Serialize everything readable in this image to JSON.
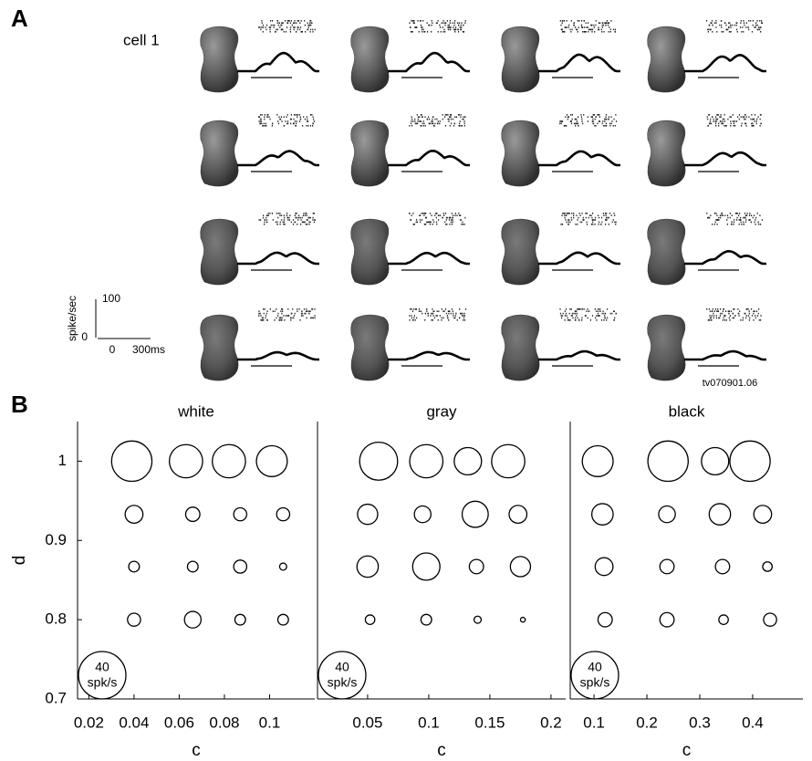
{
  "panel_a": {
    "label": "A",
    "cell_label": "cell 1",
    "scale_bar": {
      "ylabel": "spike/sec",
      "yticks": [
        0,
        100
      ],
      "xticks": [
        0,
        {
          "value": 300,
          "label": "300ms"
        }
      ]
    },
    "stimulus_id": "tv070901.06"
  },
  "panel_b_label": "B",
  "chart_data": [
    {
      "type": "bubble",
      "title": "white",
      "xlabel": "c",
      "ylabel": "d",
      "xlim": [
        0.015,
        0.12
      ],
      "xticks": [
        0.02,
        0.04,
        0.06,
        0.08,
        0.1
      ],
      "ylim": [
        0.7,
        1.05
      ],
      "yticks": [
        0.7,
        0.8,
        0.9,
        1
      ],
      "size_legend": {
        "value": 40,
        "unit": "spk/s"
      },
      "series": [
        {
          "color": "#000000",
          "x": [
            0.039,
            0.063,
            0.082,
            0.101,
            0.04,
            0.066,
            0.087,
            0.106,
            0.04,
            0.066,
            0.087,
            0.106,
            0.04,
            0.066,
            0.087,
            0.106
          ],
          "values": [
            1,
            1,
            1,
            1,
            0.933,
            0.933,
            0.933,
            0.933,
            0.867,
            0.867,
            0.867,
            0.867,
            0.8,
            0.8,
            0.8,
            0.8
          ],
          "sizes": [
            34,
            28,
            28,
            26,
            15,
            12,
            11,
            11,
            9,
            9,
            11,
            6,
            11,
            14,
            9,
            9
          ]
        }
      ]
    },
    {
      "type": "bubble",
      "title": "gray",
      "xlabel": "c",
      "xlim": [
        0.009,
        0.212
      ],
      "xticks": [
        0.05,
        0.1,
        0.15,
        0.2
      ],
      "ylim": [
        0.7,
        1.05
      ],
      "size_legend": {
        "value": 40,
        "unit": "spk/s"
      },
      "series": [
        {
          "color": "#000000",
          "x": [
            0.059,
            0.098,
            0.132,
            0.165,
            0.05,
            0.095,
            0.138,
            0.173,
            0.05,
            0.098,
            0.139,
            0.175,
            0.052,
            0.098,
            0.14,
            0.177
          ],
          "values": [
            1,
            1,
            1,
            1,
            0.933,
            0.933,
            0.933,
            0.933,
            0.867,
            0.867,
            0.867,
            0.867,
            0.8,
            0.8,
            0.8,
            0.8
          ],
          "sizes": [
            32,
            28,
            23,
            28,
            17,
            14,
            22,
            15,
            18,
            23,
            12,
            17,
            8,
            9,
            6,
            4
          ]
        }
      ]
    },
    {
      "type": "bubble",
      "title": "black",
      "xlabel": "c",
      "xlim": [
        0.055,
        0.495
      ],
      "xticks": [
        0.1,
        0.2,
        0.3,
        0.4
      ],
      "ylim": [
        0.7,
        1.05
      ],
      "size_legend": {
        "value": 40,
        "unit": "spk/s"
      },
      "series": [
        {
          "color": "#000000",
          "x": [
            0.107,
            0.24,
            0.329,
            0.395,
            0.116,
            0.238,
            0.338,
            0.419,
            0.119,
            0.238,
            0.343,
            0.428,
            0.121,
            0.238,
            0.345,
            0.433
          ],
          "values": [
            1,
            1,
            1,
            1,
            0.933,
            0.933,
            0.933,
            0.933,
            0.867,
            0.867,
            0.867,
            0.867,
            0.8,
            0.8,
            0.8,
            0.8
          ],
          "sizes": [
            26,
            34,
            23,
            34,
            18,
            14,
            18,
            15,
            15,
            12,
            12,
            8,
            12,
            12,
            8,
            11
          ]
        }
      ]
    }
  ]
}
